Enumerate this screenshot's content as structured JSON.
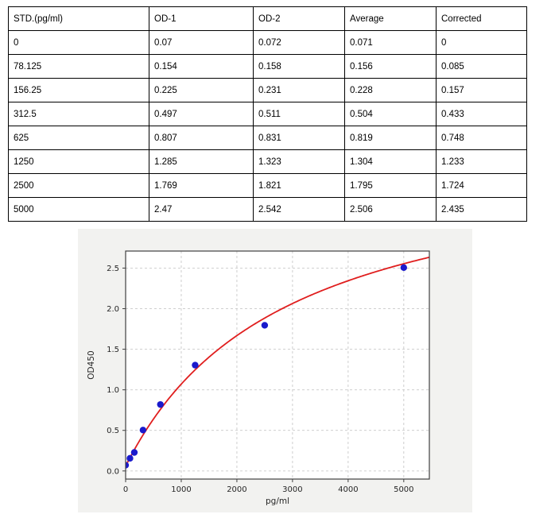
{
  "table": {
    "headers": [
      "STD.(pg/ml)",
      "OD-1",
      "OD-2",
      "Average",
      "Corrected"
    ],
    "rows": [
      [
        "0",
        "0.07",
        "0.072",
        "0.071",
        "0"
      ],
      [
        "78.125",
        "0.154",
        "0.158",
        "0.156",
        "0.085"
      ],
      [
        "156.25",
        "0.225",
        "0.231",
        "0.228",
        "0.157"
      ],
      [
        "312.5",
        "0.497",
        "0.511",
        "0.504",
        "0.433"
      ],
      [
        "625",
        "0.807",
        "0.831",
        "0.819",
        "0.748"
      ],
      [
        "1250",
        "1.285",
        "1.323",
        "1.304",
        "1.233"
      ],
      [
        "2500",
        "1.769",
        "1.821",
        "1.795",
        "1.724"
      ],
      [
        "5000",
        "2.47",
        "2.542",
        "2.506",
        "2.435"
      ]
    ]
  },
  "chart_data": {
    "type": "scatter",
    "title": "",
    "xlabel": "pg/ml",
    "ylabel": "OD450",
    "x": [
      0,
      78.125,
      156.25,
      312.5,
      625,
      1250,
      2500,
      5000
    ],
    "y": [
      0.071,
      0.156,
      0.228,
      0.504,
      0.819,
      1.304,
      1.795,
      2.506
    ],
    "fit_curve": {
      "model": "4PL",
      "a": 0.06,
      "b": 1.0,
      "c": 2900,
      "d": 4.0
    },
    "x_ticks": [
      0,
      1000,
      2000,
      3000,
      4000,
      5000
    ],
    "y_ticks": [
      0.0,
      0.5,
      1.0,
      1.5,
      2.0,
      2.5
    ],
    "xlim": [
      0,
      5460
    ],
    "ylim": [
      -0.1,
      2.71
    ],
    "grid": true,
    "legend": "none",
    "colors": {
      "point": "#1a1acc",
      "curve": "#e01e1e",
      "panel_bg": "#f2f2f0",
      "plot_bg": "#ffffff",
      "grid": "#c9c9c9",
      "axis": "#404040",
      "tick_text": "#262626"
    }
  }
}
